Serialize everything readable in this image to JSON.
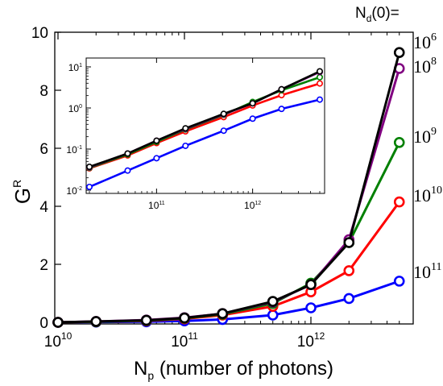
{
  "chart_data": [
    {
      "type": "line",
      "panel": "main",
      "xscale": "log",
      "xlim": [
        10000000000.0,
        5000000000000.0
      ],
      "ylim": [
        0,
        10
      ],
      "ylabel": {
        "base": "G",
        "sup": "R"
      },
      "xlabel": {
        "base": "N",
        "sub": "p",
        "rest": " (number of photons)"
      },
      "xticks": [
        {
          "base": "10",
          "exp": "10",
          "value": 10000000000.0
        },
        {
          "base": "10",
          "exp": "11",
          "value": 100000000000.0
        },
        {
          "base": "10",
          "exp": "12",
          "value": 1000000000000.0
        }
      ],
      "yticks": [
        "0",
        "2",
        "4",
        "6",
        "8",
        "10"
      ],
      "legend_header": {
        "base": "N",
        "sub": "d",
        "rest": "(0)="
      },
      "x": [
        10000000000.0,
        20000000000.0,
        50000000000.0,
        100000000000.0,
        200000000000.0,
        500000000000.0,
        1000000000000.0,
        2000000000000.0,
        5000000000000.0
      ],
      "series": [
        {
          "label_base": "10",
          "label_exp": "11",
          "color": "#0000ff",
          "values": [
            0.0,
            0.01,
            0.02,
            0.05,
            0.1,
            0.25,
            0.5,
            0.82,
            1.42
          ]
        },
        {
          "label_base": "10",
          "label_exp": "10",
          "color": "#ff0000",
          "values": [
            0.0,
            0.02,
            0.05,
            0.12,
            0.25,
            0.55,
            1.05,
            1.78,
            4.15
          ]
        },
        {
          "label_base": "10",
          "label_exp": "9",
          "color": "#008000",
          "values": [
            0.0,
            0.02,
            0.06,
            0.14,
            0.28,
            0.65,
            1.35,
            2.75,
            6.2
          ]
        },
        {
          "label_base": "10",
          "label_exp": "8",
          "color": "#800080",
          "values": [
            0.0,
            0.03,
            0.08,
            0.16,
            0.3,
            0.7,
            1.3,
            2.85,
            8.75
          ]
        },
        {
          "label_base": "10",
          "label_exp": "6",
          "color": "#000000",
          "values": [
            0.0,
            0.03,
            0.07,
            0.15,
            0.3,
            0.72,
            1.3,
            2.75,
            9.3
          ]
        }
      ]
    },
    {
      "type": "line",
      "panel": "inset",
      "xscale": "log",
      "yscale": "log",
      "xlim": [
        20000000000.0,
        5000000000000.0
      ],
      "ylim": [
        0.01,
        10
      ],
      "xticks": [
        {
          "base": "10",
          "exp": "11",
          "value": 100000000000.0
        },
        {
          "base": "10",
          "exp": "12",
          "value": 1000000000000.0
        }
      ],
      "yticks": [
        {
          "base": "10",
          "exp": "-2",
          "value": 0.01
        },
        {
          "base": "10",
          "exp": "-1",
          "value": 0.1
        },
        {
          "base": "10",
          "exp": "0",
          "value": 1
        },
        {
          "base": "10",
          "exp": "1",
          "value": 10
        }
      ],
      "x": [
        20000000000.0,
        50000000000.0,
        100000000000.0,
        200000000000.0,
        500000000000.0,
        1000000000000.0,
        2000000000000.0,
        5000000000000.0
      ],
      "series": [
        {
          "color": "#0000ff",
          "values": [
            0.012,
            0.03,
            0.06,
            0.12,
            0.28,
            0.55,
            0.95,
            1.6
          ]
        },
        {
          "color": "#ff0000",
          "values": [
            0.034,
            0.07,
            0.14,
            0.27,
            0.6,
            1.15,
            2.05,
            3.95
          ]
        },
        {
          "color": "#008000",
          "values": [
            0.035,
            0.074,
            0.15,
            0.3,
            0.68,
            1.4,
            2.7,
            5.6
          ]
        },
        {
          "color": "#800080",
          "values": [
            0.036,
            0.078,
            0.16,
            0.31,
            0.7,
            1.3,
            2.85,
            7.5
          ]
        },
        {
          "color": "#000000",
          "values": [
            0.037,
            0.078,
            0.16,
            0.32,
            0.72,
            1.3,
            2.85,
            7.8
          ]
        }
      ]
    }
  ]
}
